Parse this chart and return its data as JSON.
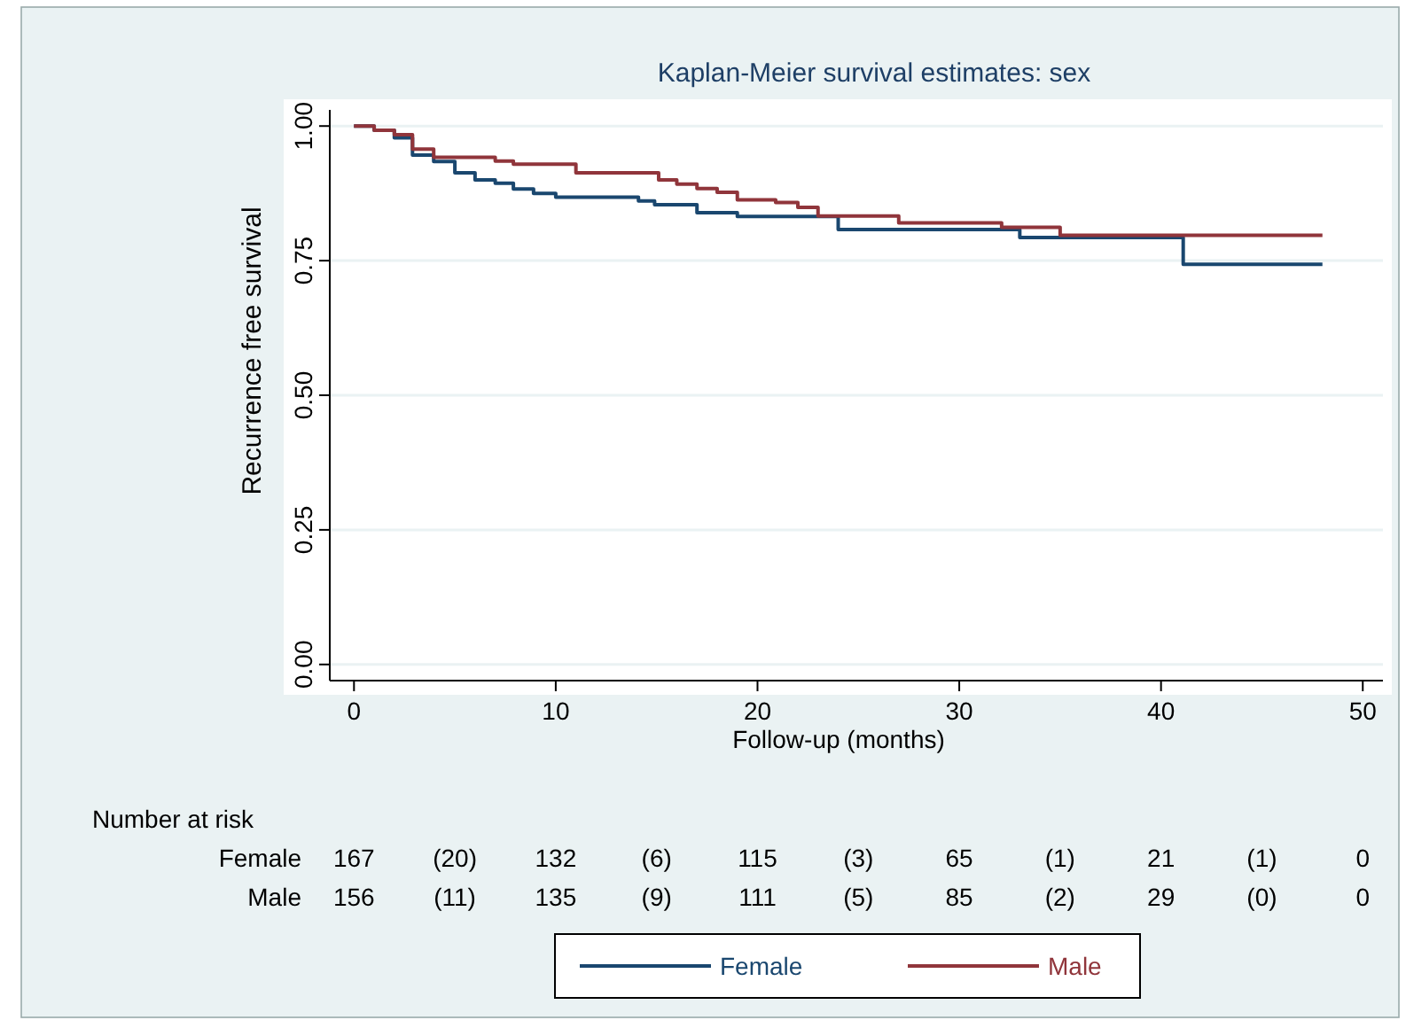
{
  "chart_data": {
    "type": "step",
    "title": "Kaplan-Meier survival estimates: sex",
    "xlabel": "Follow-up (months)",
    "ylabel": "Recurrence free survival",
    "xlim": [
      -1.2,
      51
    ],
    "xticks": [
      0,
      10,
      20,
      30,
      40,
      50
    ],
    "ylim": [
      -0.03,
      1.03
    ],
    "yticks": [
      {
        "value": 0,
        "label": "0.00"
      },
      {
        "value": 0.25,
        "label": "0.25"
      },
      {
        "value": 0.5,
        "label": "0.50"
      },
      {
        "value": 0.75,
        "label": "0.75"
      },
      {
        "value": 1,
        "label": "1.00"
      }
    ],
    "grid": "y",
    "legend": "bottom",
    "line_style": "solid",
    "marker": "none",
    "series": [
      {
        "name": "Female",
        "color": "#1a476f",
        "x": [
          0,
          1,
          2,
          2.9,
          3.95,
          5,
          6,
          7,
          7.9,
          8.9,
          10,
          14.1,
          14.9,
          17,
          19,
          24,
          33,
          41.1,
          48
        ],
        "values": [
          1,
          0.992,
          0.978,
          0.946,
          0.934,
          0.913,
          0.9,
          0.894,
          0.883,
          0.875,
          0.868,
          0.861,
          0.854,
          0.839,
          0.832,
          0.808,
          0.793,
          0.743,
          0.743
        ]
      },
      {
        "name": "Male",
        "color": "#90353b",
        "x": [
          0,
          1,
          2,
          2.9,
          3.95,
          7,
          7.9,
          11,
          15.1,
          16,
          17,
          18,
          19,
          20.9,
          22,
          23,
          27,
          32.1,
          35,
          48
        ],
        "values": [
          1,
          0.992,
          0.984,
          0.957,
          0.942,
          0.935,
          0.929,
          0.913,
          0.9,
          0.892,
          0.884,
          0.877,
          0.863,
          0.858,
          0.849,
          0.833,
          0.82,
          0.812,
          0.797,
          0.797
        ]
      }
    ],
    "annotations": [
      "Number at risk",
      "Female 167 (20) 132 (6) 115 (3) 65 (1) 21 (1) 0",
      "Male 156 (11) 135 (9) 111 (5) 85 (2) 29 (0) 0"
    ]
  }
}
